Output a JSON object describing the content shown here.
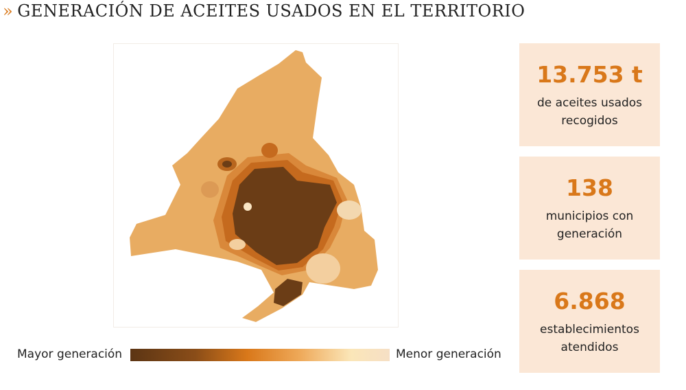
{
  "header": {
    "marker": "»",
    "title": "GENERACIÓN DE ACEITES USADOS EN EL TERRITORIO"
  },
  "legend": {
    "high": "Mayor generación",
    "low": "Menor generación"
  },
  "stats": [
    {
      "value": "13.753 t",
      "lines": [
        "de aceites usados",
        "recogidos"
      ]
    },
    {
      "value": "138",
      "lines": [
        "municipios con",
        "generación"
      ]
    },
    {
      "value": "6.868",
      "lines": [
        "establecimientos",
        "atendidos"
      ]
    }
  ]
}
